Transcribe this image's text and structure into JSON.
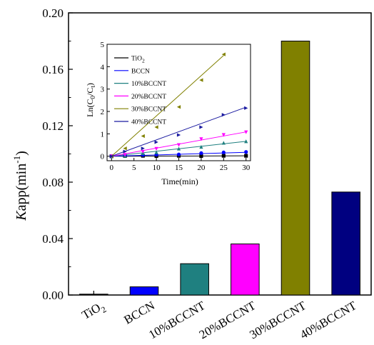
{
  "chart_data": [
    {
      "type": "bar",
      "categories": [
        "TiO2",
        "BCCN",
        "10%BCCNT",
        "20%BCCNT",
        "30%BCCNT",
        "40%BCCNT"
      ],
      "category_display": [
        {
          "base": "TiO",
          "sub": "2"
        },
        {
          "base": "BCCN",
          "sub": ""
        },
        {
          "base": "10%BCCNT",
          "sub": ""
        },
        {
          "base": "20%BCCNT",
          "sub": ""
        },
        {
          "base": "30%BCCNT",
          "sub": ""
        },
        {
          "base": "40%BCCNT",
          "sub": ""
        }
      ],
      "values": [
        0.0006,
        0.0058,
        0.0222,
        0.0362,
        0.18,
        0.073
      ],
      "colors": [
        "#000000",
        "#0000ff",
        "#1f8080",
        "#ff00ff",
        "#808000",
        "#000080"
      ],
      "ylabel": {
        "italic": "K",
        "rest": "app(min",
        "sup": "-1",
        "close": ")"
      },
      "ylim": [
        0,
        0.2
      ],
      "yticks": [
        "0.00",
        "0.04",
        "0.08",
        "0.12",
        "0.16",
        "0.20"
      ],
      "ytick_values": [
        0,
        0.04,
        0.08,
        0.12,
        0.16,
        0.2
      ]
    },
    {
      "type": "line",
      "inset": true,
      "xlabel": "Time(min)",
      "ylabel": {
        "pre": "Ln(C",
        "sub1": "0",
        "mid": "/C",
        "sub2": "t",
        "post": ")"
      },
      "xlim": [
        -1,
        31
      ],
      "ylim": [
        -0.2,
        5
      ],
      "xticks": [
        0,
        5,
        10,
        15,
        20,
        25,
        30
      ],
      "yticks": [
        0,
        1,
        2,
        3,
        4,
        5
      ],
      "x": [
        0,
        3,
        7,
        10,
        15,
        20,
        25,
        30
      ],
      "series": [
        {
          "name": "TiO2",
          "name_base": "TiO",
          "name_sub": "2",
          "color": "#000000",
          "marker": "square",
          "slope": 0.0006,
          "values": [
            0,
            0.01,
            0.02,
            0.01,
            0.02,
            0.01,
            0.02,
            0.02
          ]
        },
        {
          "name": "BCCN",
          "name_base": "BCCN",
          "name_sub": "",
          "color": "#0000ff",
          "marker": "circle",
          "slope": 0.0058,
          "values": [
            0,
            0.05,
            0.06,
            0.07,
            0.08,
            0.14,
            0.17,
            0.19
          ]
        },
        {
          "name": "10%BCCNT",
          "name_base": "10%BCCNT",
          "name_sub": "",
          "color": "#1f8080",
          "marker": "triangle-up",
          "slope": 0.0222,
          "values": [
            0,
            0.02,
            0.14,
            0.18,
            0.34,
            0.42,
            0.6,
            0.67
          ]
        },
        {
          "name": "20%BCCNT",
          "name_base": "20%BCCNT",
          "name_sub": "",
          "color": "#ff00ff",
          "marker": "triangle-down",
          "slope": 0.0362,
          "values": [
            0,
            0.06,
            0.2,
            0.33,
            0.5,
            0.76,
            0.95,
            1.07
          ]
        },
        {
          "name": "30%BCCNT",
          "name_base": "30%BCCNT",
          "name_sub": "",
          "color": "#808000",
          "marker": "triangle-left",
          "slope": 0.18,
          "x": [
            0,
            3,
            7,
            10,
            15,
            20,
            25
          ],
          "values": [
            0,
            0.35,
            0.9,
            1.3,
            2.2,
            3.4,
            4.55
          ]
        },
        {
          "name": "40%BCCNT",
          "name_base": "40%BCCNT",
          "name_sub": "",
          "color": "#1a1aa0",
          "marker": "triangle-right",
          "slope": 0.073,
          "values": [
            0,
            0.21,
            0.35,
            0.63,
            0.95,
            1.3,
            1.85,
            2.15
          ]
        }
      ]
    }
  ]
}
